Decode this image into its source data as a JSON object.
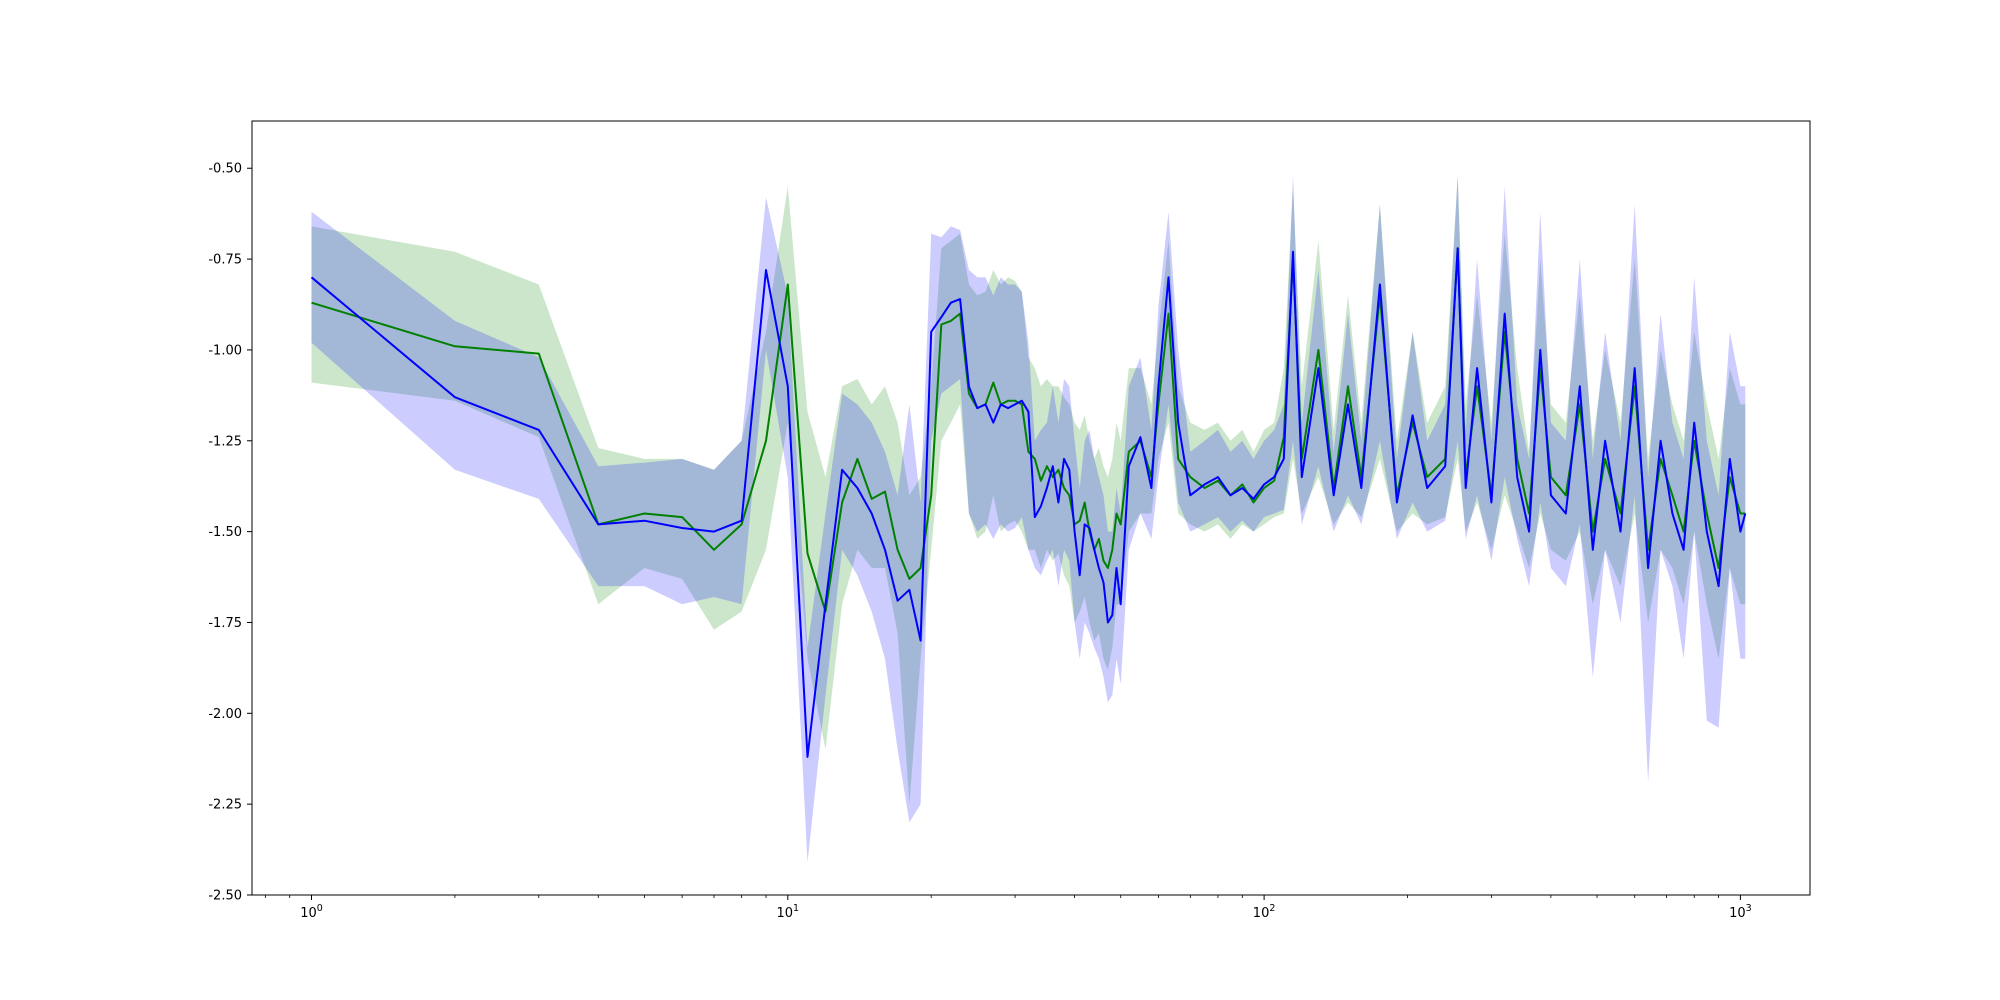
{
  "chart_data": {
    "type": "line",
    "title": "",
    "xlabel": "",
    "ylabel": "",
    "x_scale": "log",
    "xlim": [
      0.75,
      1400
    ],
    "ylim": [
      -2.5,
      -0.37
    ],
    "x_ticks": [
      {
        "value": 1,
        "base": "10",
        "exp": "0"
      },
      {
        "value": 10,
        "base": "10",
        "exp": "1"
      },
      {
        "value": 100,
        "base": "10",
        "exp": "2"
      },
      {
        "value": 1000,
        "base": "10",
        "exp": "3"
      }
    ],
    "y_ticks": [
      "-0.50",
      "-0.75",
      "-1.00",
      "-1.25",
      "-1.50",
      "-1.75",
      "-2.00",
      "-2.25",
      "-2.50"
    ],
    "grid": false,
    "series": [
      {
        "color": "#008000",
        "band_color": "#008000",
        "x": [
          1,
          2,
          3,
          4,
          5,
          6,
          7,
          8,
          9,
          10,
          11,
          12,
          13,
          14,
          15,
          16,
          17,
          18,
          19,
          20,
          21,
          22,
          23,
          24,
          25,
          26,
          27,
          28,
          29,
          30,
          31,
          32,
          33,
          34,
          35,
          36,
          37,
          38,
          39,
          40,
          41,
          42,
          43,
          44,
          45,
          46,
          47,
          48,
          49,
          50,
          52,
          55,
          58,
          60,
          63,
          66,
          70,
          75,
          80,
          85,
          90,
          95,
          100,
          105,
          110,
          115,
          120,
          130,
          140,
          150,
          160,
          175,
          190,
          205,
          220,
          240,
          255,
          265,
          280,
          300,
          320,
          340,
          360,
          380,
          400,
          430,
          460,
          490,
          520,
          560,
          600,
          640,
          680,
          720,
          760,
          800,
          850,
          900,
          950,
          1000,
          1024
        ],
        "y": [
          -0.87,
          -0.99,
          -1.01,
          -1.48,
          -1.45,
          -1.46,
          -1.55,
          -1.48,
          -1.25,
          -0.82,
          -1.56,
          -1.72,
          -1.42,
          -1.3,
          -1.41,
          -1.39,
          -1.55,
          -1.63,
          -1.6,
          -1.4,
          -0.93,
          -0.92,
          -0.9,
          -1.12,
          -1.16,
          -1.15,
          -1.09,
          -1.15,
          -1.14,
          -1.14,
          -1.15,
          -1.28,
          -1.3,
          -1.36,
          -1.32,
          -1.35,
          -1.33,
          -1.38,
          -1.4,
          -1.48,
          -1.47,
          -1.42,
          -1.5,
          -1.55,
          -1.52,
          -1.58,
          -1.6,
          -1.55,
          -1.45,
          -1.48,
          -1.28,
          -1.25,
          -1.35,
          -1.15,
          -0.9,
          -1.3,
          -1.35,
          -1.38,
          -1.36,
          -1.4,
          -1.37,
          -1.42,
          -1.38,
          -1.36,
          -1.24,
          -0.75,
          -1.3,
          -1.0,
          -1.38,
          -1.1,
          -1.35,
          -0.85,
          -1.4,
          -1.2,
          -1.35,
          -1.3,
          -0.72,
          -1.35,
          -1.1,
          -1.4,
          -0.95,
          -1.3,
          -1.45,
          -1.05,
          -1.35,
          -1.4,
          -1.15,
          -1.5,
          -1.3,
          -1.45,
          -1.1,
          -1.55,
          -1.3,
          -1.4,
          -1.5,
          -1.25,
          -1.45,
          -1.6,
          -1.35,
          -1.45,
          -1.45
        ],
        "lower": [
          -1.09,
          -1.14,
          -1.24,
          -1.7,
          -1.6,
          -1.63,
          -1.77,
          -1.72,
          -1.55,
          -1.2,
          -1.85,
          -2.1,
          -1.7,
          -1.55,
          -1.6,
          -1.6,
          -1.78,
          -2.25,
          -1.85,
          -1.55,
          -1.25,
          -1.2,
          -1.15,
          -1.45,
          -1.52,
          -1.5,
          -1.4,
          -1.5,
          -1.48,
          -1.47,
          -1.5,
          -1.55,
          -1.55,
          -1.6,
          -1.55,
          -1.58,
          -1.56,
          -1.62,
          -1.65,
          -1.75,
          -1.72,
          -1.68,
          -1.75,
          -1.8,
          -1.78,
          -1.85,
          -1.88,
          -1.82,
          -1.7,
          -1.7,
          -1.5,
          -1.45,
          -1.45,
          -1.3,
          -1.2,
          -1.45,
          -1.48,
          -1.5,
          -1.48,
          -1.52,
          -1.48,
          -1.5,
          -1.48,
          -1.46,
          -1.45,
          -1.3,
          -1.45,
          -1.35,
          -1.48,
          -1.42,
          -1.46,
          -1.3,
          -1.5,
          -1.45,
          -1.48,
          -1.46,
          -1.3,
          -1.5,
          -1.42,
          -1.55,
          -1.4,
          -1.5,
          -1.6,
          -1.45,
          -1.55,
          -1.58,
          -1.5,
          -1.7,
          -1.55,
          -1.65,
          -1.45,
          -1.75,
          -1.55,
          -1.6,
          -1.7,
          -1.5,
          -1.7,
          -1.85,
          -1.6,
          -1.7,
          -1.7
        ],
        "upper": [
          -0.66,
          -0.73,
          -0.82,
          -1.27,
          -1.3,
          -1.3,
          -1.33,
          -1.25,
          -0.95,
          -0.55,
          -1.17,
          -1.35,
          -1.1,
          -1.08,
          -1.15,
          -1.1,
          -1.2,
          -1.4,
          -1.35,
          -1.1,
          -0.72,
          -0.7,
          -0.68,
          -0.82,
          -0.85,
          -0.84,
          -0.78,
          -0.82,
          -0.8,
          -0.81,
          -0.84,
          -1.02,
          -1.05,
          -1.1,
          -1.08,
          -1.1,
          -1.1,
          -1.13,
          -1.15,
          -1.2,
          -1.22,
          -1.18,
          -1.25,
          -1.3,
          -1.27,
          -1.32,
          -1.35,
          -1.3,
          -1.2,
          -1.25,
          -1.05,
          -1.05,
          -1.15,
          -0.95,
          -0.7,
          -1.1,
          -1.2,
          -1.22,
          -1.2,
          -1.25,
          -1.22,
          -1.28,
          -1.22,
          -1.2,
          -1.05,
          -0.55,
          -1.1,
          -0.7,
          -1.22,
          -0.85,
          -1.2,
          -0.6,
          -1.25,
          -0.95,
          -1.2,
          -1.1,
          -0.52,
          -1.15,
          -0.85,
          -1.2,
          -0.68,
          -1.05,
          -1.28,
          -0.75,
          -1.15,
          -1.2,
          -0.85,
          -1.25,
          -1.0,
          -1.2,
          -0.75,
          -1.3,
          -1.0,
          -1.15,
          -1.25,
          -0.95,
          -1.15,
          -1.3,
          -1.05,
          -1.15,
          -1.15
        ]
      },
      {
        "color": "#0000ff",
        "band_color": "#0000ff",
        "x": [
          1,
          2,
          3,
          4,
          5,
          6,
          7,
          8,
          9,
          10,
          11,
          12,
          13,
          14,
          15,
          16,
          17,
          18,
          19,
          20,
          21,
          22,
          23,
          24,
          25,
          26,
          27,
          28,
          29,
          30,
          31,
          32,
          33,
          34,
          35,
          36,
          37,
          38,
          39,
          40,
          41,
          42,
          43,
          44,
          45,
          46,
          47,
          48,
          49,
          50,
          52,
          55,
          58,
          60,
          63,
          66,
          70,
          75,
          80,
          85,
          90,
          95,
          100,
          105,
          110,
          115,
          120,
          130,
          140,
          150,
          160,
          175,
          190,
          205,
          220,
          240,
          255,
          265,
          280,
          300,
          320,
          340,
          360,
          380,
          400,
          430,
          460,
          490,
          520,
          560,
          600,
          640,
          680,
          720,
          760,
          800,
          850,
          900,
          950,
          1000,
          1024
        ],
        "y": [
          -0.8,
          -1.13,
          -1.22,
          -1.48,
          -1.47,
          -1.49,
          -1.5,
          -1.47,
          -0.78,
          -1.1,
          -2.12,
          -1.7,
          -1.33,
          -1.38,
          -1.45,
          -1.55,
          -1.69,
          -1.66,
          -1.8,
          -0.95,
          -0.91,
          -0.87,
          -0.86,
          -1.1,
          -1.16,
          -1.15,
          -1.2,
          -1.15,
          -1.16,
          -1.15,
          -1.14,
          -1.17,
          -1.46,
          -1.43,
          -1.38,
          -1.32,
          -1.42,
          -1.3,
          -1.33,
          -1.5,
          -1.62,
          -1.48,
          -1.49,
          -1.55,
          -1.6,
          -1.64,
          -1.75,
          -1.73,
          -1.6,
          -1.7,
          -1.32,
          -1.24,
          -1.38,
          -1.1,
          -0.8,
          -1.2,
          -1.4,
          -1.37,
          -1.35,
          -1.4,
          -1.38,
          -1.41,
          -1.37,
          -1.35,
          -1.3,
          -0.73,
          -1.35,
          -1.05,
          -1.4,
          -1.15,
          -1.38,
          -0.82,
          -1.42,
          -1.18,
          -1.38,
          -1.32,
          -0.72,
          -1.38,
          -1.05,
          -1.42,
          -0.9,
          -1.35,
          -1.5,
          -1.0,
          -1.4,
          -1.45,
          -1.1,
          -1.55,
          -1.25,
          -1.5,
          -1.05,
          -1.6,
          -1.25,
          -1.45,
          -1.55,
          -1.2,
          -1.5,
          -1.65,
          -1.3,
          -1.5,
          -1.45
        ],
        "lower": [
          -0.98,
          -1.33,
          -1.41,
          -1.65,
          -1.65,
          -1.7,
          -1.68,
          -1.7,
          -1.0,
          -1.35,
          -2.41,
          -1.95,
          -1.55,
          -1.62,
          -1.72,
          -1.85,
          -2.1,
          -2.3,
          -2.25,
          -1.25,
          -1.12,
          -1.1,
          -1.08,
          -1.45,
          -1.5,
          -1.48,
          -1.52,
          -1.48,
          -1.5,
          -1.49,
          -1.46,
          -1.55,
          -1.6,
          -1.62,
          -1.58,
          -1.55,
          -1.65,
          -1.55,
          -1.58,
          -1.75,
          -1.85,
          -1.75,
          -1.78,
          -1.82,
          -1.85,
          -1.9,
          -1.97,
          -1.95,
          -1.85,
          -1.92,
          -1.55,
          -1.45,
          -1.52,
          -1.35,
          -1.15,
          -1.42,
          -1.5,
          -1.48,
          -1.46,
          -1.5,
          -1.47,
          -1.5,
          -1.46,
          -1.45,
          -1.44,
          -1.25,
          -1.48,
          -1.32,
          -1.5,
          -1.4,
          -1.48,
          -1.25,
          -1.52,
          -1.42,
          -1.5,
          -1.47,
          -1.25,
          -1.52,
          -1.4,
          -1.58,
          -1.35,
          -1.52,
          -1.65,
          -1.42,
          -1.6,
          -1.65,
          -1.48,
          -1.9,
          -1.55,
          -1.75,
          -1.4,
          -2.19,
          -1.55,
          -1.65,
          -1.85,
          -1.5,
          -2.02,
          -2.04,
          -1.6,
          -1.85,
          -1.85
        ],
        "upper": [
          -0.62,
          -0.92,
          -1.02,
          -1.32,
          -1.31,
          -1.3,
          -1.33,
          -1.25,
          -0.58,
          -0.85,
          -1.82,
          -1.45,
          -1.12,
          -1.15,
          -1.2,
          -1.28,
          -1.4,
          -1.15,
          -1.42,
          -0.68,
          -0.69,
          -0.66,
          -0.67,
          -0.78,
          -0.8,
          -0.8,
          -0.85,
          -0.8,
          -0.82,
          -0.82,
          -0.84,
          -0.98,
          -1.25,
          -1.22,
          -1.2,
          -1.1,
          -1.2,
          -1.08,
          -1.1,
          -1.25,
          -1.38,
          -1.25,
          -1.22,
          -1.3,
          -1.35,
          -1.4,
          -1.5,
          -1.5,
          -1.38,
          -1.45,
          -1.1,
          -1.02,
          -1.22,
          -0.88,
          -0.62,
          -1.0,
          -1.28,
          -1.25,
          -1.22,
          -1.28,
          -1.25,
          -1.3,
          -1.25,
          -1.22,
          -1.15,
          -0.52,
          -1.2,
          -0.78,
          -1.28,
          -0.9,
          -1.25,
          -0.6,
          -1.3,
          -0.95,
          -1.25,
          -1.15,
          -0.52,
          -1.22,
          -0.75,
          -1.25,
          -0.55,
          -1.15,
          -1.3,
          -0.62,
          -1.2,
          -1.25,
          -0.75,
          -1.3,
          -0.95,
          -1.25,
          -0.6,
          -1.35,
          -0.9,
          -1.2,
          -1.3,
          -0.8,
          -1.25,
          -1.4,
          -0.95,
          -1.1,
          -1.1
        ]
      }
    ]
  }
}
